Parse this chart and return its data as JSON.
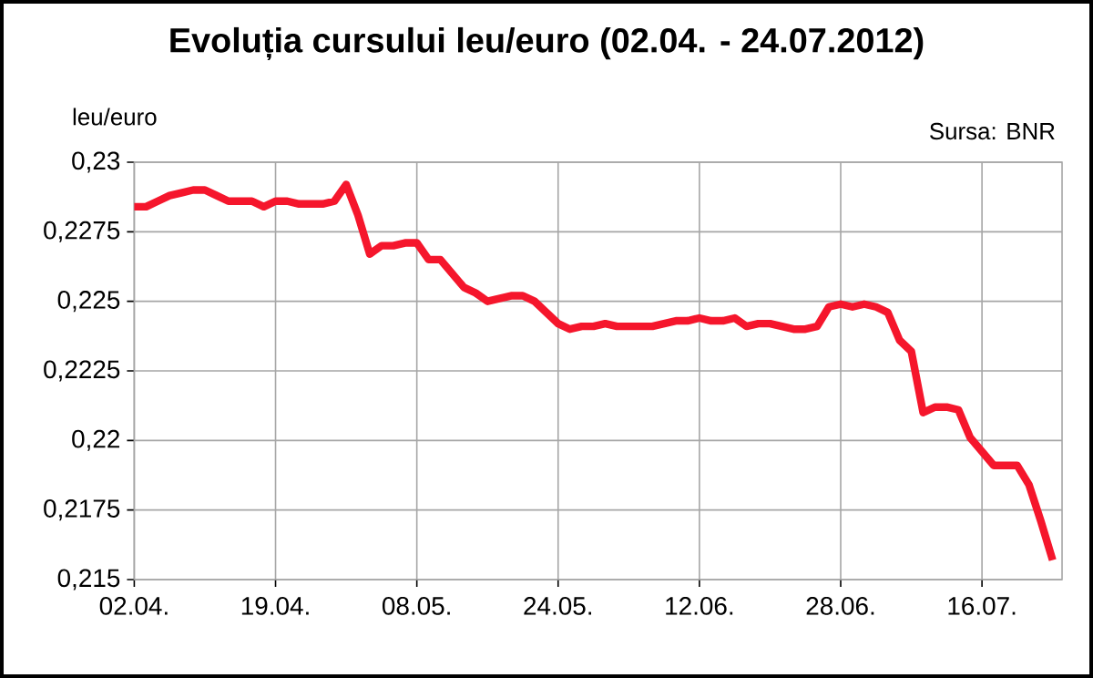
{
  "chart_data": {
    "type": "line",
    "title": "Evoluția cursului leu/euro  (02.04. - 24.07.2012)",
    "ylabel": "leu/euro",
    "annotations": [
      "Sursa: BNR"
    ],
    "categories": [
      "02.04.",
      null,
      null,
      null,
      null,
      null,
      null,
      null,
      null,
      null,
      null,
      null,
      "19.04.",
      null,
      null,
      null,
      null,
      null,
      null,
      null,
      null,
      null,
      null,
      null,
      "08.05.",
      null,
      null,
      null,
      null,
      null,
      null,
      null,
      null,
      null,
      null,
      null,
      "24.05.",
      null,
      null,
      null,
      null,
      null,
      null,
      null,
      null,
      null,
      null,
      null,
      "12.06.",
      null,
      null,
      null,
      null,
      null,
      null,
      null,
      null,
      null,
      null,
      null,
      "28.06.",
      null,
      null,
      null,
      null,
      null,
      null,
      null,
      null,
      null,
      null,
      null,
      "16.07.",
      null,
      null,
      null,
      null,
      null,
      null
    ],
    "series": [
      {
        "color": "#f5162c",
        "values": [
          0.2284,
          0.2284,
          0.2286,
          0.2288,
          0.2289,
          0.229,
          0.229,
          0.2288,
          0.2286,
          0.2286,
          0.2286,
          0.2284,
          0.2286,
          0.2286,
          0.2285,
          0.2285,
          0.2285,
          0.2286,
          0.2292,
          0.2281,
          0.2267,
          0.227,
          0.227,
          0.2271,
          0.2271,
          0.2265,
          0.2265,
          0.226,
          0.2255,
          0.2253,
          0.225,
          0.2251,
          0.2252,
          0.2252,
          0.225,
          0.2246,
          0.2242,
          0.224,
          0.2241,
          0.2241,
          0.2242,
          0.2241,
          0.2241,
          0.2241,
          0.2241,
          0.2242,
          0.2243,
          0.2243,
          0.2244,
          0.2243,
          0.2243,
          0.2244,
          0.2241,
          0.2242,
          0.2242,
          0.2241,
          0.224,
          0.224,
          0.2241,
          0.2248,
          0.2249,
          0.2248,
          0.2249,
          0.2248,
          0.2246,
          0.2236,
          0.2232,
          0.221,
          0.2212,
          0.2212,
          0.2211,
          0.2201,
          0.2196,
          0.2191,
          0.2191,
          0.2191,
          0.2184,
          0.2171,
          0.2157
        ]
      }
    ],
    "ylim": [
      0.215,
      0.23
    ],
    "yticks": [
      {
        "value": 0.215,
        "label": "0,215"
      },
      {
        "value": 0.2175,
        "label": "0,2175"
      },
      {
        "value": 0.22,
        "label": "0,22"
      },
      {
        "value": 0.2225,
        "label": "0,2225"
      },
      {
        "value": 0.225,
        "label": "0,225"
      },
      {
        "value": 0.2275,
        "label": "0,2275"
      },
      {
        "value": 0.23,
        "label": "0,23"
      }
    ],
    "grid": true,
    "legend": false,
    "marker": "none",
    "line_style": "solid"
  }
}
